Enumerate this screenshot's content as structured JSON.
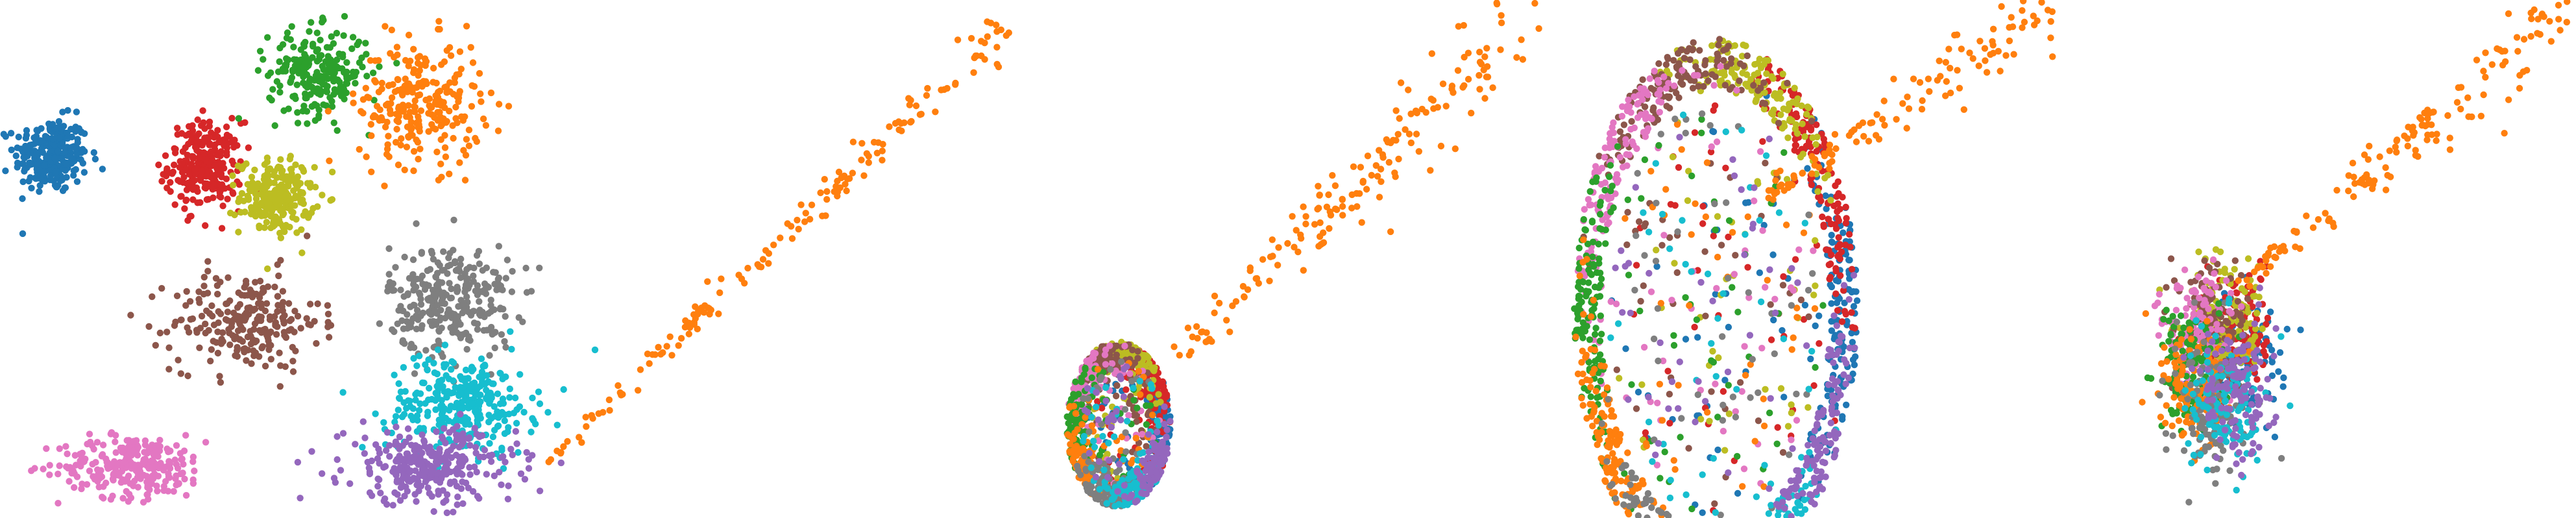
{
  "figure": {
    "background": "#ffffff"
  },
  "palette": {
    "blue": "#1f77b4",
    "orange": "#ff7f0e",
    "green": "#2ca02c",
    "red": "#d62728",
    "purple": "#9467bd",
    "brown": "#8c564b",
    "pink": "#e377c2",
    "gray": "#7f7f7f",
    "olive": "#bcbd22",
    "cyan": "#17becf"
  },
  "chart_data": [
    {
      "type": "scatter",
      "axes_visible": false,
      "grid": false,
      "legend": "none",
      "xlim": [
        0,
        1
      ],
      "ylim": [
        0,
        1
      ],
      "point_counts_approx": 4000,
      "clusters": [
        {
          "color": "#1f77b4",
          "center": [
            0.05,
            0.7
          ],
          "spread": [
            0.03,
            0.06
          ],
          "n": 260
        },
        {
          "color": "#d62728",
          "center": [
            0.2,
            0.68
          ],
          "spread": [
            0.03,
            0.07
          ],
          "n": 260
        },
        {
          "color": "#bcbd22",
          "center": [
            0.27,
            0.62
          ],
          "spread": [
            0.03,
            0.06
          ],
          "n": 220
        },
        {
          "color": "#8c564b",
          "center": [
            0.24,
            0.38
          ],
          "spread": [
            0.06,
            0.08
          ],
          "n": 240
        },
        {
          "color": "#e377c2",
          "center": [
            0.13,
            0.1
          ],
          "spread": [
            0.06,
            0.05
          ],
          "n": 260
        },
        {
          "color": "#2ca02c",
          "center": [
            0.31,
            0.86
          ],
          "spread": [
            0.04,
            0.07
          ],
          "n": 240
        },
        {
          "color": "#ff7f0e",
          "center": [
            0.41,
            0.8
          ],
          "spread": [
            0.05,
            0.1
          ],
          "n": 260
        },
        {
          "color": "#7f7f7f",
          "center": [
            0.44,
            0.42
          ],
          "spread": [
            0.05,
            0.09
          ],
          "n": 300
        },
        {
          "color": "#17becf",
          "center": [
            0.45,
            0.22
          ],
          "spread": [
            0.06,
            0.08
          ],
          "n": 300
        },
        {
          "color": "#9467bd",
          "center": [
            0.42,
            0.1
          ],
          "spread": [
            0.07,
            0.06
          ],
          "n": 300
        }
      ],
      "trail": {
        "color": "#ff7f0e",
        "from": [
          0.53,
          0.1
        ],
        "to": [
          0.98,
          0.95
        ],
        "n": 160
      }
    },
    {
      "type": "scatter",
      "axes_visible": false,
      "grid": false,
      "legend": "none",
      "xlim": [
        0,
        1
      ],
      "ylim": [
        0,
        1
      ],
      "description_shape": "small ring with trail",
      "ring": {
        "center": [
          0.18,
          0.18
        ],
        "radius": [
          0.1,
          0.16
        ]
      },
      "trail": {
        "color": "#ff7f0e",
        "from": [
          0.28,
          0.3
        ],
        "to": [
          0.98,
          0.98
        ],
        "n": 170
      }
    },
    {
      "type": "scatter",
      "axes_visible": false,
      "grid": false,
      "legend": "none",
      "xlim": [
        0,
        1
      ],
      "ylim": [
        0,
        1
      ],
      "description_shape": "large ring with trail",
      "ring": {
        "center": [
          0.33,
          0.4
        ],
        "radius": [
          0.26,
          0.5
        ]
      },
      "trail": {
        "color": "#ff7f0e",
        "from": [
          0.42,
          0.62
        ],
        "to": [
          0.98,
          0.99
        ],
        "n": 120
      }
    },
    {
      "type": "scatter",
      "axes_visible": false,
      "grid": false,
      "legend": "none",
      "xlim": [
        0,
        1
      ],
      "ylim": [
        0,
        1
      ],
      "description_shape": "dense blob with trail",
      "blob": {
        "center": [
          0.3,
          0.3
        ],
        "spread": [
          0.15,
          0.25
        ]
      },
      "trail": {
        "color": "#ff7f0e",
        "from": [
          0.35,
          0.45
        ],
        "to": [
          0.98,
          0.98
        ],
        "n": 150
      }
    }
  ]
}
